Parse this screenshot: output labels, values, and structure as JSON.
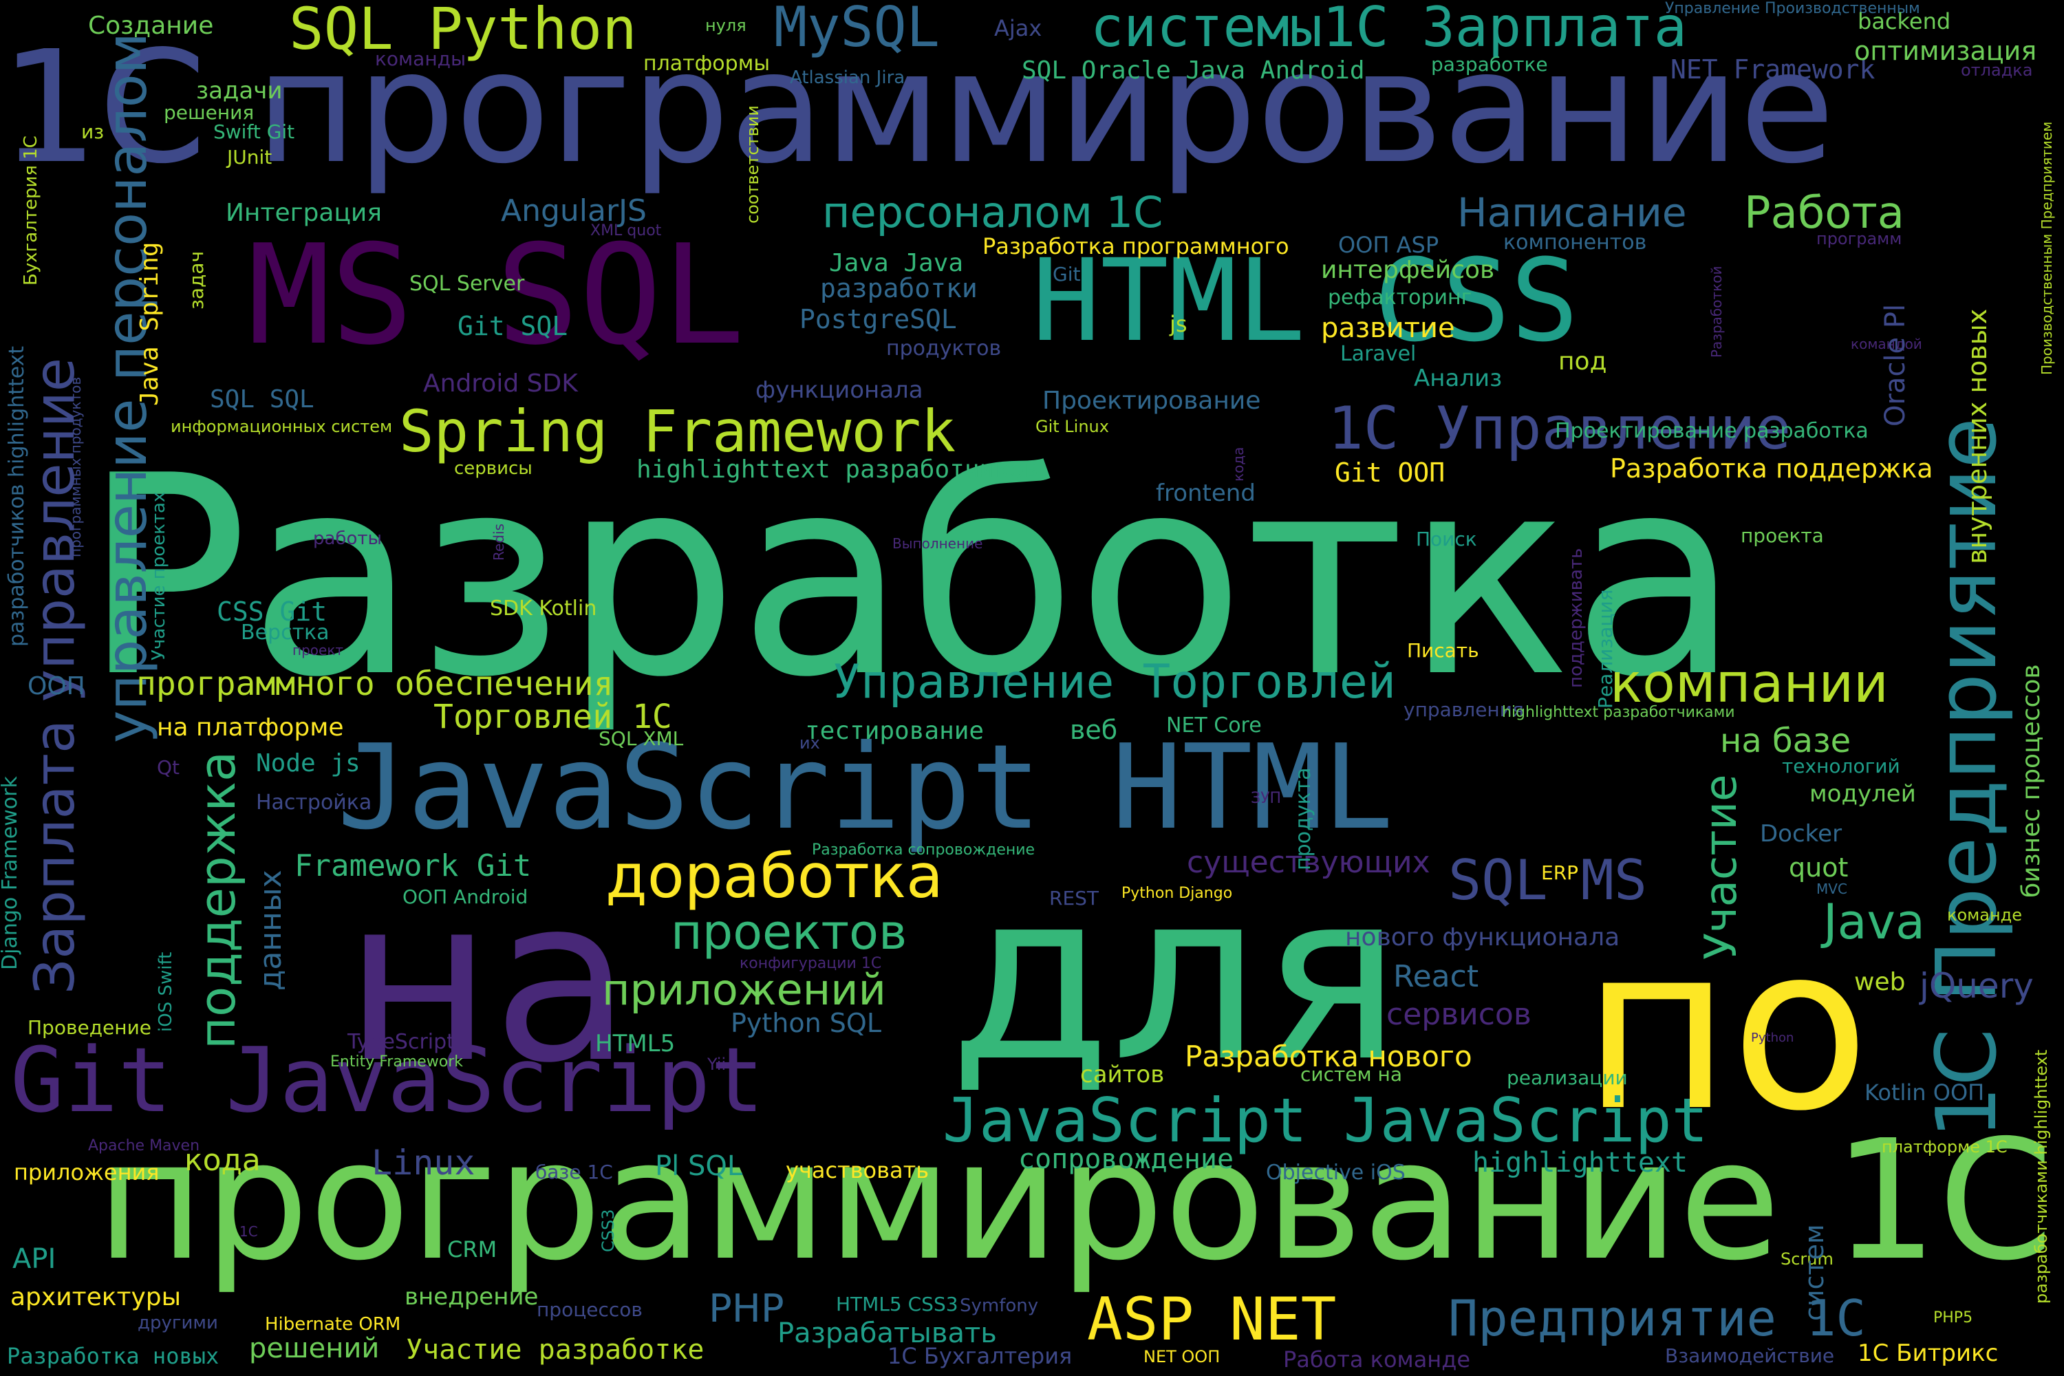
{
  "palette": {
    "yellow": "#fde725",
    "lime": "#b5de2b",
    "light_green": "#6ece58",
    "green": "#35b779",
    "teal": "#1f9e89",
    "teal_blue": "#26828e",
    "blue": "#31688e",
    "indigo": "#3e4989",
    "violet": "#482878",
    "dark_purple": "#440154",
    "background": "#000000"
  },
  "words": [
    {
      "key": "w0",
      "text": "Разработка",
      "color": "green"
    },
    {
      "key": "w1",
      "text": "1С программирование",
      "color": "indigo"
    },
    {
      "key": "w2",
      "text": "программирование 1С",
      "color": "light_green"
    },
    {
      "key": "w3",
      "text": "на",
      "color": "violet"
    },
    {
      "key": "w4",
      "text": "для",
      "color": "green"
    },
    {
      "key": "w5",
      "text": "по",
      "color": "yellow"
    },
    {
      "key": "w6",
      "text": "MS SQL",
      "color": "dark_purple"
    },
    {
      "key": "w7",
      "text": "HTML CSS",
      "color": "teal"
    },
    {
      "key": "w8",
      "text": "JavaScript HTML",
      "color": "blue"
    },
    {
      "key": "w9",
      "text": "Git JavaScript",
      "color": "violet"
    },
    {
      "key": "w10",
      "text": "JavaScript JavaScript",
      "color": "teal"
    },
    {
      "key": "w11",
      "text": "1С Предприятие",
      "color": "teal_blue"
    },
    {
      "key": "w12",
      "text": "управление персоналом",
      "color": "blue"
    },
    {
      "key": "w13",
      "text": "Зарплата управление",
      "color": "indigo"
    },
    {
      "key": "w14",
      "text": "SQL Python",
      "color": "lime"
    },
    {
      "key": "w15",
      "text": "MySQL",
      "color": "blue"
    },
    {
      "key": "w16",
      "text": "системы1С Зарплата",
      "color": "teal"
    },
    {
      "key": "w17",
      "text": "Spring Framework",
      "color": "lime"
    },
    {
      "key": "w18",
      "text": "1С Управление",
      "color": "indigo"
    },
    {
      "key": "w19",
      "text": "ASP NET",
      "color": "yellow"
    },
    {
      "key": "w20",
      "text": "Предприятие 1С",
      "color": "blue"
    },
    {
      "key": "w21",
      "text": "доработка",
      "color": "yellow"
    },
    {
      "key": "w22",
      "text": "Управление Торговлей",
      "color": "teal"
    },
    {
      "key": "w23",
      "text": "компании",
      "color": "lime"
    },
    {
      "key": "w24",
      "text": "поддержка",
      "color": "green"
    },
    {
      "key": "w25",
      "text": "персоналом 1С",
      "color": "teal"
    },
    {
      "key": "w26",
      "text": "Написание",
      "color": "blue"
    },
    {
      "key": "w27",
      "text": "Работа",
      "color": "light_green"
    },
    {
      "key": "w28",
      "text": "SQL MS",
      "color": "indigo"
    },
    {
      "key": "w29",
      "text": "Участие",
      "color": "green"
    },
    {
      "key": "w30",
      "text": "проектов",
      "color": "green"
    },
    {
      "key": "w31",
      "text": "приложений",
      "color": "light_green"
    },
    {
      "key": "w32",
      "text": "Java",
      "color": "green"
    },
    {
      "key": "w33",
      "text": "программного обеспечения",
      "color": "lime"
    },
    {
      "key": "w34",
      "text": "Торговлей 1С",
      "color": "lime"
    },
    {
      "key": "w35",
      "text": "на базе",
      "color": "light_green"
    },
    {
      "key": "w36",
      "text": "Создание",
      "color": "light_green"
    },
    {
      "key": "w37",
      "text": "Ajax",
      "color": "indigo"
    },
    {
      "key": "w38",
      "text": "нуля",
      "color": "light_green"
    },
    {
      "key": "w39",
      "text": "Управление Производственным",
      "color": "blue"
    },
    {
      "key": "w40",
      "text": "backend",
      "color": "light_green"
    },
    {
      "key": "w41",
      "text": "команды",
      "color": "violet"
    },
    {
      "key": "w42",
      "text": "платформы",
      "color": "lime"
    },
    {
      "key": "w43",
      "text": "SQL Oracle Java Android",
      "color": "green"
    },
    {
      "key": "w44",
      "text": "разработке",
      "color": "green"
    },
    {
      "key": "w45",
      "text": "NET Framework",
      "color": "indigo"
    },
    {
      "key": "w46",
      "text": "оптимизация",
      "color": "light_green"
    },
    {
      "key": "w47",
      "text": "отладка",
      "color": "violet"
    },
    {
      "key": "w48",
      "text": "задачи",
      "color": "light_green"
    },
    {
      "key": "w49",
      "text": "решения",
      "color": "light_green"
    },
    {
      "key": "w50",
      "text": "Atlassian Jira",
      "color": "blue"
    },
    {
      "key": "w51",
      "text": "из",
      "color": "lime"
    },
    {
      "key": "w52",
      "text": "Swift Git",
      "color": "green"
    },
    {
      "key": "w53",
      "text": "JUnit",
      "color": "lime"
    },
    {
      "key": "w54",
      "text": "AngularJS",
      "color": "blue"
    },
    {
      "key": "w55",
      "text": "Интеграция",
      "color": "green"
    },
    {
      "key": "w56",
      "text": "XML quot",
      "color": "violet"
    },
    {
      "key": "w57",
      "text": "соответствии",
      "color": "lime"
    },
    {
      "key": "w58",
      "text": "Java Spring",
      "color": "yellow"
    },
    {
      "key": "w59",
      "text": "задач",
      "color": "lime"
    },
    {
      "key": "w60",
      "text": "Разработка программного",
      "color": "yellow"
    },
    {
      "key": "w61",
      "text": "ООП ASP",
      "color": "blue"
    },
    {
      "key": "w62",
      "text": "компонентов",
      "color": "blue"
    },
    {
      "key": "w63",
      "text": "программ",
      "color": "violet"
    },
    {
      "key": "w64",
      "text": "SQL Server",
      "color": "light_green"
    },
    {
      "key": "w65",
      "text": "Java Java",
      "color": "green"
    },
    {
      "key": "w66",
      "text": "разработки",
      "color": "blue"
    },
    {
      "key": "w67",
      "text": "Git",
      "color": "blue"
    },
    {
      "key": "w68",
      "text": "интерфейсов",
      "color": "light_green"
    },
    {
      "key": "w69",
      "text": "рефакторинг",
      "color": "green"
    },
    {
      "key": "w70",
      "text": "Git SQL",
      "color": "teal"
    },
    {
      "key": "w71",
      "text": "PostgreSQL",
      "color": "blue"
    },
    {
      "key": "w72",
      "text": "js",
      "color": "lime"
    },
    {
      "key": "w73",
      "text": "развитие",
      "color": "yellow"
    },
    {
      "key": "w74",
      "text": "продуктов",
      "color": "indigo"
    },
    {
      "key": "w75",
      "text": "Laravel",
      "color": "teal"
    },
    {
      "key": "w76",
      "text": "командой",
      "color": "violet"
    },
    {
      "key": "w77",
      "text": "Android SDK",
      "color": "violet"
    },
    {
      "key": "w78",
      "text": "функционала",
      "color": "indigo"
    },
    {
      "key": "w79",
      "text": "Анализ",
      "color": "teal"
    },
    {
      "key": "w80",
      "text": "под",
      "color": "lime"
    },
    {
      "key": "w81",
      "text": "SQL SQL",
      "color": "blue"
    },
    {
      "key": "w82",
      "text": "Проектирование",
      "color": "blue"
    },
    {
      "key": "w83",
      "text": "Проектирование разработка",
      "color": "green"
    },
    {
      "key": "w84",
      "text": "информационных систем",
      "color": "lime"
    },
    {
      "key": "w85",
      "text": "Git Linux",
      "color": "lime"
    },
    {
      "key": "w86",
      "text": "highlighttext разработчиков",
      "color": "green"
    },
    {
      "key": "w87",
      "text": "Git ООП",
      "color": "yellow"
    },
    {
      "key": "w88",
      "text": "Разработка поддержка",
      "color": "yellow"
    },
    {
      "key": "w89",
      "text": "сервисы",
      "color": "lime"
    },
    {
      "key": "w90",
      "text": "frontend",
      "color": "blue"
    },
    {
      "key": "w91",
      "text": "работы",
      "color": "violet"
    },
    {
      "key": "w92",
      "text": "Выполнение",
      "color": "violet"
    },
    {
      "key": "w93",
      "text": "Поиск",
      "color": "teal"
    },
    {
      "key": "w94",
      "text": "проекта",
      "color": "light_green"
    },
    {
      "key": "w95",
      "text": "CSS Git",
      "color": "teal"
    },
    {
      "key": "w96",
      "text": "SDK Kotlin",
      "color": "lime"
    },
    {
      "key": "w97",
      "text": "Верстка",
      "color": "teal"
    },
    {
      "key": "w98",
      "text": "проект",
      "color": "violet"
    },
    {
      "key": "w99",
      "text": "Писать",
      "color": "yellow"
    },
    {
      "key": "w100",
      "text": "ООП",
      "color": "blue"
    },
    {
      "key": "w101",
      "text": "на платформе",
      "color": "yellow"
    },
    {
      "key": "w102",
      "text": "тестирование",
      "color": "green"
    },
    {
      "key": "w103",
      "text": "веб",
      "color": "green"
    },
    {
      "key": "w104",
      "text": "NET Core",
      "color": "green"
    },
    {
      "key": "w105",
      "text": "управления",
      "color": "indigo"
    },
    {
      "key": "w106",
      "text": "highlighttext разработчиками",
      "color": "light_green"
    },
    {
      "key": "w107",
      "text": "SQL XML",
      "color": "light_green"
    },
    {
      "key": "w108",
      "text": "их",
      "color": "indigo"
    },
    {
      "key": "w109",
      "text": "технологий",
      "color": "teal"
    },
    {
      "key": "w110",
      "text": "Node js",
      "color": "teal"
    },
    {
      "key": "w111",
      "text": "Qt",
      "color": "violet"
    },
    {
      "key": "w112",
      "text": "Настройка",
      "color": "indigo"
    },
    {
      "key": "w113",
      "text": "ЗУП",
      "color": "violet"
    },
    {
      "key": "w114",
      "text": "модулей",
      "color": "light_green"
    },
    {
      "key": "w115",
      "text": "Framework Git",
      "color": "green"
    },
    {
      "key": "w116",
      "text": "существующих",
      "color": "violet"
    },
    {
      "key": "w117",
      "text": "Docker",
      "color": "blue"
    },
    {
      "key": "w118",
      "text": "Разработка сопровождение",
      "color": "green"
    },
    {
      "key": "w119",
      "text": "quot",
      "color": "light_green"
    },
    {
      "key": "w120",
      "text": "ООП Android",
      "color": "green"
    },
    {
      "key": "w121",
      "text": "REST",
      "color": "indigo"
    },
    {
      "key": "w122",
      "text": "Python Django",
      "color": "yellow"
    },
    {
      "key": "w123",
      "text": "ERP",
      "color": "yellow"
    },
    {
      "key": "w124",
      "text": "MVC",
      "color": "blue"
    },
    {
      "key": "w125",
      "text": "команде",
      "color": "lime"
    },
    {
      "key": "w126",
      "text": "нового функционала",
      "color": "indigo"
    },
    {
      "key": "w127",
      "text": "конфигурации 1С",
      "color": "violet"
    },
    {
      "key": "w128",
      "text": "React",
      "color": "blue"
    },
    {
      "key": "w129",
      "text": "web",
      "color": "lime"
    },
    {
      "key": "w130",
      "text": "jQuery",
      "color": "indigo"
    },
    {
      "key": "w131",
      "text": "сервисов",
      "color": "violet"
    },
    {
      "key": "w132",
      "text": "Python SQL",
      "color": "blue"
    },
    {
      "key": "w133",
      "text": "Проведение",
      "color": "lime"
    },
    {
      "key": "w134",
      "text": "TypeScript",
      "color": "violet"
    },
    {
      "key": "w135",
      "text": "HTML5",
      "color": "green"
    },
    {
      "key": "w136",
      "text": "Python",
      "color": "violet"
    },
    {
      "key": "w137",
      "text": "Разработка нового",
      "color": "yellow"
    },
    {
      "key": "w138",
      "text": "Entity Framework",
      "color": "light_green"
    },
    {
      "key": "w139",
      "text": "Yii",
      "color": "violet"
    },
    {
      "key": "w140",
      "text": "сайтов",
      "color": "lime"
    },
    {
      "key": "w141",
      "text": "систем на",
      "color": "light_green"
    },
    {
      "key": "w142",
      "text": "реализации",
      "color": "green"
    },
    {
      "key": "w143",
      "text": "Kotlin ООП",
      "color": "blue"
    },
    {
      "key": "w144",
      "text": "Apache Maven",
      "color": "violet"
    },
    {
      "key": "w145",
      "text": "кода",
      "color": "lime"
    },
    {
      "key": "w146",
      "text": "Linux",
      "color": "indigo"
    },
    {
      "key": "w147",
      "text": "базе 1С",
      "color": "indigo"
    },
    {
      "key": "w148",
      "text": "Pl SQL",
      "color": "teal"
    },
    {
      "key": "w149",
      "text": "участвовать",
      "color": "yellow"
    },
    {
      "key": "w150",
      "text": "Objective iOS",
      "color": "blue"
    },
    {
      "key": "w151",
      "text": "highlighttext",
      "color": "teal"
    },
    {
      "key": "w152",
      "text": "платформе 1С",
      "color": "lime"
    },
    {
      "key": "w153",
      "text": "приложения",
      "color": "yellow"
    },
    {
      "key": "w154",
      "text": "сопровождение",
      "color": "green"
    },
    {
      "key": "w155",
      "text": "1С",
      "color": "violet"
    },
    {
      "key": "w156",
      "text": "API",
      "color": "teal"
    },
    {
      "key": "w157",
      "text": "CRM",
      "color": "green"
    },
    {
      "key": "w158",
      "text": "Scrum",
      "color": "lime"
    },
    {
      "key": "w159",
      "text": "архитектуры",
      "color": "yellow"
    },
    {
      "key": "w160",
      "text": "внедрение",
      "color": "light_green"
    },
    {
      "key": "w161",
      "text": "другими",
      "color": "indigo"
    },
    {
      "key": "w162",
      "text": "Hibernate ORM",
      "color": "yellow"
    },
    {
      "key": "w163",
      "text": "процессов",
      "color": "indigo"
    },
    {
      "key": "w164",
      "text": "PHP",
      "color": "blue"
    },
    {
      "key": "w165",
      "text": "HTML5 CSS3",
      "color": "teal"
    },
    {
      "key": "w166",
      "text": "Symfony",
      "color": "indigo"
    },
    {
      "key": "w167",
      "text": "Разрабатывать",
      "color": "teal"
    },
    {
      "key": "w168",
      "text": "PHP5",
      "color": "lime"
    },
    {
      "key": "w169",
      "text": "Разработка новых",
      "color": "teal"
    },
    {
      "key": "w170",
      "text": "решений",
      "color": "light_green"
    },
    {
      "key": "w171",
      "text": "Участие разработке",
      "color": "lime"
    },
    {
      "key": "w172",
      "text": "1С Бухгалтерия",
      "color": "indigo"
    },
    {
      "key": "w173",
      "text": "NET ООП",
      "color": "yellow"
    },
    {
      "key": "w174",
      "text": "Работа команде",
      "color": "violet"
    },
    {
      "key": "w175",
      "text": "Взаимодействие",
      "color": "indigo"
    },
    {
      "key": "w176",
      "text": "1С Битрикс",
      "color": "yellow"
    },
    {
      "key": "w177",
      "text": "Бухгалтерия 1С",
      "color": "lime"
    },
    {
      "key": "w178",
      "text": "разработчиков highlighttext",
      "color": "blue"
    },
    {
      "key": "w179",
      "text": "программных продуктов",
      "color": "indigo"
    },
    {
      "key": "w180",
      "text": "Участие проектах",
      "color": "teal"
    },
    {
      "key": "w181",
      "text": "Django Framework",
      "color": "teal"
    },
    {
      "key": "w182",
      "text": "iOS Swift",
      "color": "teal"
    },
    {
      "key": "w183",
      "text": "данных",
      "color": "blue"
    },
    {
      "key": "w184",
      "text": "Redis",
      "color": "violet"
    },
    {
      "key": "w185",
      "text": "кода",
      "color": "violet"
    },
    {
      "key": "w186",
      "text": "поддерживать",
      "color": "violet"
    },
    {
      "key": "w187",
      "text": "Реализация",
      "color": "teal"
    },
    {
      "key": "w188",
      "text": "продукта",
      "color": "teal"
    },
    {
      "key": "w189",
      "text": "CSS3",
      "color": "teal"
    },
    {
      "key": "w190",
      "text": "систем",
      "color": "blue"
    },
    {
      "key": "w191",
      "text": "Разработкой",
      "color": "violet"
    },
    {
      "key": "w192",
      "text": "Oracle Pl",
      "color": "indigo"
    },
    {
      "key": "w193",
      "text": "внутренних новых",
      "color": "lime"
    },
    {
      "key": "w194",
      "text": "Производственным Предприятием",
      "color": "lime"
    },
    {
      "key": "w195",
      "text": "бизнес процессов",
      "color": "light_green"
    },
    {
      "key": "w196",
      "text": "разработчиками highlighttext",
      "color": "lime"
    }
  ]
}
